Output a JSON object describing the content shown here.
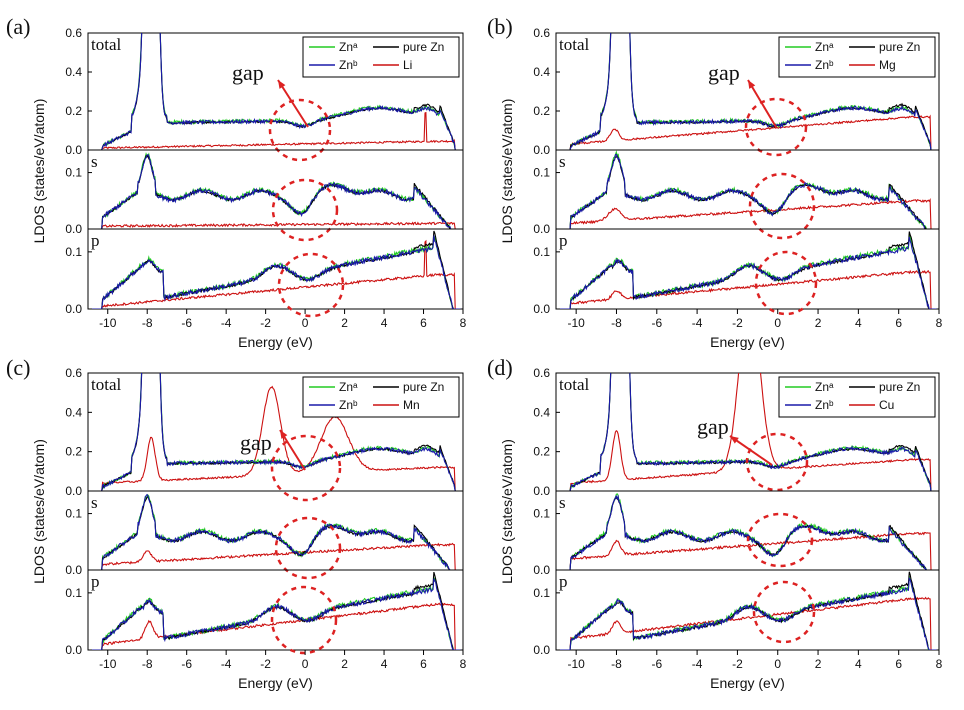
{
  "chart_data": [
    {
      "type": "line",
      "panel": "(a)",
      "dopant": "Li",
      "xlabel": "Energy (eV)",
      "ylabel": "LDOS (states/eV/atom)",
      "annotation": "gap",
      "xlim": [
        -11,
        8
      ],
      "xticks": [
        "-10",
        "-8",
        "-6",
        "-4",
        "-2",
        "0",
        "2",
        "4",
        "6",
        "8"
      ],
      "subplots": [
        {
          "label": "total",
          "ylim": [
            0,
            0.6
          ],
          "yticks": [
            "0.0",
            "0.2",
            "0.4",
            "0.6"
          ]
        },
        {
          "label": "s",
          "ylim": [
            0,
            0.14
          ],
          "yticks": [
            "0.0",
            "0.1"
          ]
        },
        {
          "label": "p",
          "ylim": [
            0,
            0.14
          ],
          "yticks": [
            "0.0",
            "0.1"
          ]
        }
      ],
      "legend": [
        "Znᵃ",
        "pure Zn",
        "Znᵇ",
        "Li"
      ],
      "series": [
        {
          "name": "Znᵃ",
          "color": "#22cc22"
        },
        {
          "name": "pure Zn",
          "color": "#000000"
        },
        {
          "name": "Znᵇ",
          "color": "#1a1aaa"
        },
        {
          "name": "Li",
          "color": "#cc1111"
        }
      ]
    },
    {
      "type": "line",
      "panel": "(b)",
      "dopant": "Mg",
      "xlabel": "Energy (eV)",
      "ylabel": "LDOS (states/eV/atom)",
      "annotation": "gap",
      "xlim": [
        -11,
        8
      ],
      "xticks": [
        "-10",
        "-8",
        "-6",
        "-4",
        "-2",
        "0",
        "2",
        "4",
        "6",
        "8"
      ],
      "subplots": [
        {
          "label": "total",
          "ylim": [
            0,
            0.6
          ],
          "yticks": [
            "0.0",
            "0.2",
            "0.4",
            "0.6"
          ]
        },
        {
          "label": "s",
          "ylim": [
            0,
            0.14
          ],
          "yticks": [
            "0.0",
            "0.1"
          ]
        },
        {
          "label": "p",
          "ylim": [
            0,
            0.14
          ],
          "yticks": [
            "0.0",
            "0.1"
          ]
        }
      ],
      "legend": [
        "Znᵃ",
        "pure Zn",
        "Znᵇ",
        "Mg"
      ],
      "series": [
        {
          "name": "Znᵃ",
          "color": "#22cc22"
        },
        {
          "name": "pure Zn",
          "color": "#000000"
        },
        {
          "name": "Znᵇ",
          "color": "#1a1aaa"
        },
        {
          "name": "Mg",
          "color": "#cc1111"
        }
      ]
    },
    {
      "type": "line",
      "panel": "(c)",
      "dopant": "Mn",
      "xlabel": "Energy (eV)",
      "ylabel": "LDOS (states/eV/atom)",
      "annotation": "gap",
      "xlim": [
        -11,
        8
      ],
      "xticks": [
        "-10",
        "-8",
        "-6",
        "-4",
        "-2",
        "0",
        "2",
        "4",
        "6",
        "8"
      ],
      "subplots": [
        {
          "label": "total",
          "ylim": [
            0,
            0.6
          ],
          "yticks": [
            "0.0",
            "0.2",
            "0.4",
            "0.6"
          ]
        },
        {
          "label": "s",
          "ylim": [
            0,
            0.14
          ],
          "yticks": [
            "0.0",
            "0.1"
          ]
        },
        {
          "label": "p",
          "ylim": [
            0,
            0.14
          ],
          "yticks": [
            "0.0",
            "0.1"
          ]
        }
      ],
      "legend": [
        "Znᵃ",
        "pure Zn",
        "Znᵇ",
        "Mn"
      ],
      "series": [
        {
          "name": "Znᵃ",
          "color": "#22cc22"
        },
        {
          "name": "pure Zn",
          "color": "#000000"
        },
        {
          "name": "Znᵇ",
          "color": "#1a1aaa"
        },
        {
          "name": "Mn",
          "color": "#cc1111"
        }
      ]
    },
    {
      "type": "line",
      "panel": "(d)",
      "dopant": "Cu",
      "xlabel": "Energy (eV)",
      "ylabel": "LDOS (states/eV/atom)",
      "annotation": "gap",
      "xlim": [
        -11,
        8
      ],
      "xticks": [
        "-10",
        "-8",
        "-6",
        "-4",
        "-2",
        "0",
        "2",
        "4",
        "6",
        "8"
      ],
      "subplots": [
        {
          "label": "total",
          "ylim": [
            0,
            0.6
          ],
          "yticks": [
            "0.0",
            "0.2",
            "0.4",
            "0.6"
          ]
        },
        {
          "label": "s",
          "ylim": [
            0,
            0.14
          ],
          "yticks": [
            "0.0",
            "0.1"
          ]
        },
        {
          "label": "p",
          "ylim": [
            0,
            0.14
          ],
          "yticks": [
            "0.0",
            "0.1"
          ]
        }
      ],
      "legend": [
        "Znᵃ",
        "pure Zn",
        "Znᵇ",
        "Cu"
      ],
      "series": [
        {
          "name": "Znᵃ",
          "color": "#22cc22"
        },
        {
          "name": "pure Zn",
          "color": "#000000"
        },
        {
          "name": "Znᵇ",
          "color": "#1a1aaa"
        },
        {
          "name": "Cu",
          "color": "#cc1111"
        }
      ]
    }
  ]
}
